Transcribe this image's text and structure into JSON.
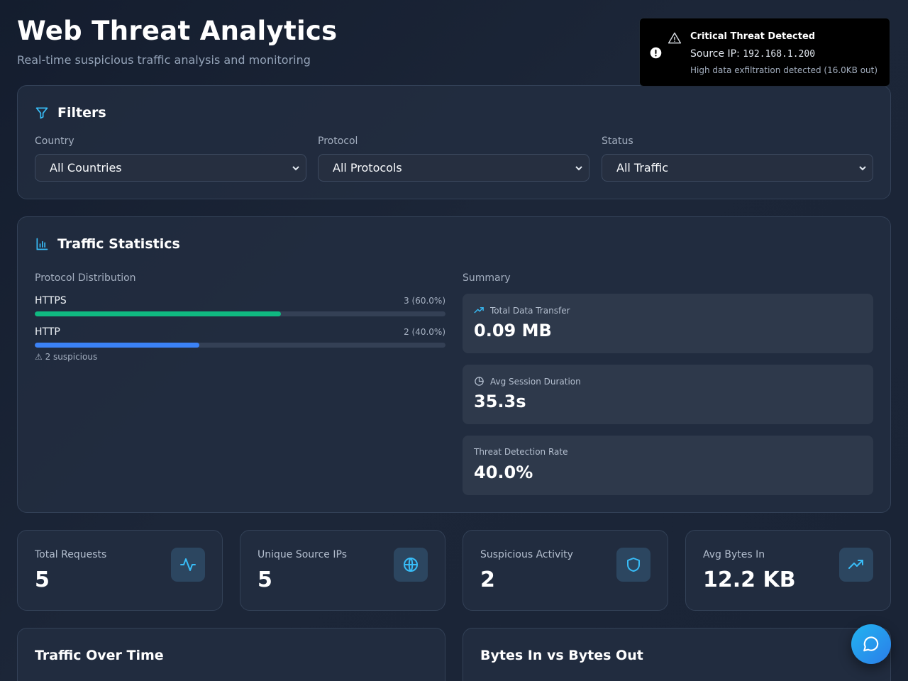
{
  "header": {
    "title": "Web Threat Analytics",
    "subtitle": "Real-time suspicious traffic analysis and monitoring"
  },
  "filters": {
    "title": "Filters",
    "icon": "filter-icon",
    "country": {
      "label": "Country",
      "value": "All Countries"
    },
    "protocol": {
      "label": "Protocol",
      "value": "All Protocols"
    },
    "status": {
      "label": "Status",
      "value": "All Traffic"
    }
  },
  "traffic_stats": {
    "title": "Traffic Statistics",
    "icon": "bar-chart-icon",
    "distribution_label": "Protocol Distribution",
    "protocols": [
      {
        "name": "HTTPS",
        "count_label": "3 (60.0%)",
        "fraction": 0.6,
        "color": "#10b981"
      },
      {
        "name": "HTTP",
        "count_label": "2 (40.0%)",
        "fraction": 0.4,
        "color": "#3b82f6",
        "note": "⚠ 2 suspicious"
      }
    ],
    "summary_label": "Summary",
    "summary": [
      {
        "label": "Total Data Transfer",
        "value": "0.09 MB",
        "icon": "trending-up-icon"
      },
      {
        "label": "Avg Session Duration",
        "value": "35.3s",
        "icon": "clock-icon"
      },
      {
        "label": "Threat Detection Rate",
        "value": "40.0%"
      }
    ]
  },
  "metrics": [
    {
      "label": "Total Requests",
      "value": "5",
      "icon": "activity-icon"
    },
    {
      "label": "Unique Source IPs",
      "value": "5",
      "icon": "globe-icon"
    },
    {
      "label": "Suspicious Activity",
      "value": "2",
      "icon": "shield-icon"
    },
    {
      "label": "Avg Bytes In",
      "value": "12.2 KB",
      "icon": "trending-up-icon"
    }
  ],
  "charts": {
    "traffic_over_time": "Traffic Over Time",
    "bytes_in_out": "Bytes In vs Bytes Out"
  },
  "toast": {
    "title": "Critical Threat Detected",
    "source_prefix": "Source IP: ",
    "source_ip": "192.168.1.200",
    "detail": "High data exfiltration detected (16.0KB out)"
  },
  "colors": {
    "accent": "#38bdf8",
    "https_bar": "#10b981",
    "http_bar": "#3b82f6"
  }
}
